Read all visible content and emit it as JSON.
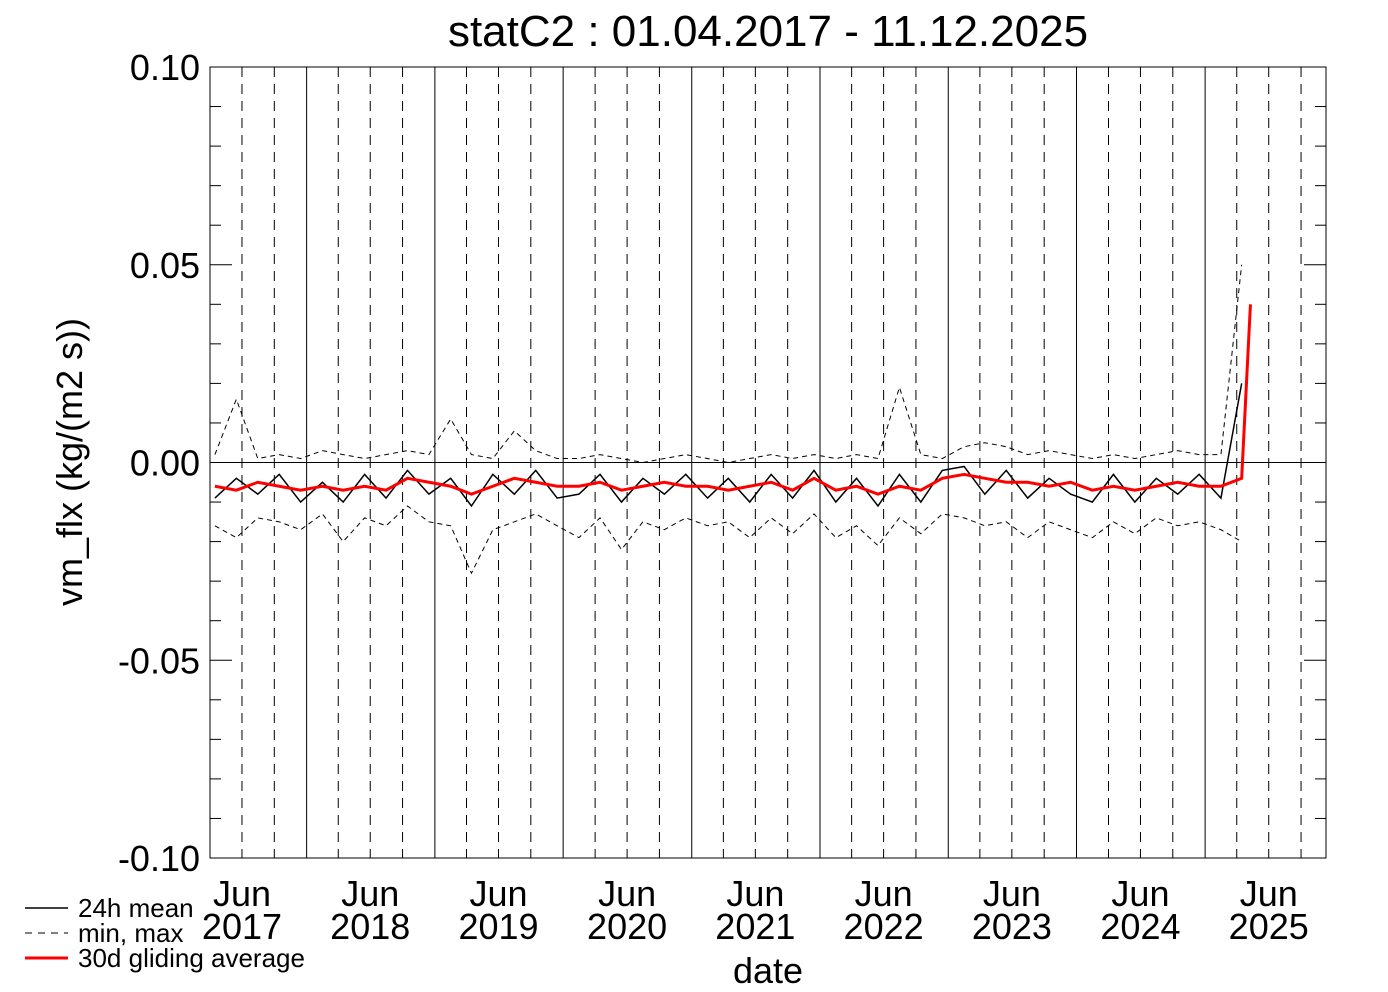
{
  "chart_data": {
    "type": "line",
    "title": "statC2 : 01.04.2017 - 11.12.2025",
    "x_label": "date",
    "y_label": "vm_flx (kg/(m2 s))",
    "xlim": [
      "2017-04-01",
      "2025-12-11"
    ],
    "ylim": [
      -0.1,
      0.1
    ],
    "yticks": [
      {
        "value": 0.1,
        "label": "0.10"
      },
      {
        "value": 0.05,
        "label": "0.05"
      },
      {
        "value": 0,
        "label": "0.00"
      },
      {
        "value": -0.05,
        "label": "-0.05"
      },
      {
        "value": -0.1,
        "label": "-0.10"
      }
    ],
    "yminorticks": [
      -0.09,
      -0.08,
      -0.07,
      -0.06,
      -0.04,
      -0.03,
      -0.02,
      -0.01,
      0.01,
      0.02,
      0.03,
      0.04,
      0.06,
      0.07,
      0.08,
      0.09
    ],
    "reference_line": 0,
    "xticks": [
      {
        "value": "2017-07-01",
        "label": "Jun 2017"
      },
      {
        "value": "2018-07-01",
        "label": "Jun 2018"
      },
      {
        "value": "2019-07-01",
        "label": "Jun 2019"
      },
      {
        "value": "2020-07-01",
        "label": "Jun 2020"
      },
      {
        "value": "2021-07-01",
        "label": "Jun 2021"
      },
      {
        "value": "2022-07-01",
        "label": "Jun 2022"
      },
      {
        "value": "2023-07-01",
        "label": "Jun 2023"
      },
      {
        "value": "2024-07-01",
        "label": "Jun 2024"
      },
      {
        "value": "2025-07-01",
        "label": "Jun 2025"
      }
    ],
    "year_lines": [
      "2018-01-01",
      "2019-01-01",
      "2020-01-01",
      "2021-01-01",
      "2022-01-01",
      "2023-01-01",
      "2024-01-01",
      "2025-01-01"
    ],
    "quarter_lines": [
      "2017-07-01",
      "2017-10-01",
      "2018-04-01",
      "2018-07-01",
      "2018-10-01",
      "2019-04-01",
      "2019-07-01",
      "2019-10-01",
      "2020-04-01",
      "2020-07-01",
      "2020-10-01",
      "2021-04-01",
      "2021-07-01",
      "2021-10-01",
      "2022-04-01",
      "2022-07-01",
      "2022-10-01",
      "2023-04-01",
      "2023-07-01",
      "2023-10-01",
      "2024-04-01",
      "2024-07-01",
      "2024-10-01",
      "2025-04-01",
      "2025-07-01",
      "2025-10-01"
    ],
    "x": [
      "2017-04-15",
      "2017-06-15",
      "2017-08-15",
      "2017-10-15",
      "2017-12-15",
      "2018-02-15",
      "2018-04-15",
      "2018-06-15",
      "2018-08-15",
      "2018-10-15",
      "2018-12-15",
      "2019-02-15",
      "2019-04-15",
      "2019-06-15",
      "2019-08-15",
      "2019-10-15",
      "2019-12-15",
      "2020-02-15",
      "2020-04-15",
      "2020-06-15",
      "2020-08-15",
      "2020-10-15",
      "2020-12-15",
      "2021-02-15",
      "2021-04-15",
      "2021-06-15",
      "2021-08-15",
      "2021-10-15",
      "2021-12-15",
      "2022-02-15",
      "2022-04-15",
      "2022-06-15",
      "2022-08-15",
      "2022-10-15",
      "2022-12-15",
      "2023-02-15",
      "2023-04-15",
      "2023-06-15",
      "2023-08-15",
      "2023-10-15",
      "2023-12-15",
      "2024-02-15",
      "2024-04-15",
      "2024-06-15",
      "2024-08-15",
      "2024-10-15",
      "2024-12-15",
      "2025-02-15",
      "2025-04-15",
      "2025-05-10"
    ],
    "series": [
      {
        "name": "24h mean",
        "color": "#000000",
        "dash": false,
        "width": 1.5,
        "values": [
          -0.009,
          -0.004,
          -0.008,
          -0.003,
          -0.01,
          -0.005,
          -0.01,
          -0.003,
          -0.009,
          -0.002,
          -0.008,
          -0.004,
          -0.011,
          -0.003,
          -0.008,
          -0.002,
          -0.009,
          -0.008,
          -0.003,
          -0.01,
          -0.004,
          -0.008,
          -0.003,
          -0.009,
          -0.004,
          -0.01,
          -0.003,
          -0.009,
          -0.002,
          -0.01,
          -0.004,
          -0.011,
          -0.003,
          -0.01,
          -0.002,
          -0.001,
          -0.008,
          -0.002,
          -0.009,
          -0.004,
          -0.008,
          -0.01,
          -0.003,
          -0.01,
          -0.004,
          -0.008,
          -0.003,
          -0.009,
          0.02,
          null
        ]
      },
      {
        "name": "min, max",
        "color": "#000000",
        "dash": true,
        "width": 1,
        "low": [
          -0.016,
          -0.019,
          -0.014,
          -0.015,
          -0.017,
          -0.013,
          -0.02,
          -0.014,
          -0.016,
          -0.011,
          -0.015,
          -0.016,
          -0.028,
          -0.017,
          -0.015,
          -0.013,
          -0.016,
          -0.019,
          -0.014,
          -0.022,
          -0.015,
          -0.017,
          -0.014,
          -0.016,
          -0.015,
          -0.019,
          -0.014,
          -0.018,
          -0.013,
          -0.019,
          -0.016,
          -0.021,
          -0.014,
          -0.018,
          -0.013,
          -0.014,
          -0.016,
          -0.015,
          -0.019,
          -0.015,
          -0.017,
          -0.019,
          -0.015,
          -0.018,
          -0.014,
          -0.016,
          -0.015,
          -0.017,
          -0.02,
          null
        ],
        "high": [
          0.002,
          0.016,
          0.001,
          0.002,
          0.001,
          0.003,
          0.002,
          0.001,
          0.002,
          0.003,
          0.002,
          0.011,
          0.002,
          0.001,
          0.008,
          0.003,
          0.001,
          0.001,
          0.002,
          0.001,
          0.0,
          0.001,
          0.002,
          0.001,
          0.0,
          0.001,
          0.002,
          0.001,
          0.002,
          0.001,
          0.002,
          0.001,
          0.019,
          0.002,
          0.001,
          0.004,
          0.005,
          0.004,
          0.002,
          0.003,
          0.002,
          0.001,
          0.002,
          0.001,
          0.002,
          0.003,
          0.002,
          0.002,
          0.05,
          null
        ]
      },
      {
        "name": "30d gliding average",
        "color": "#ff0000",
        "dash": false,
        "width": 3,
        "values": [
          -0.006,
          -0.007,
          -0.005,
          -0.006,
          -0.007,
          -0.006,
          -0.007,
          -0.006,
          -0.007,
          -0.004,
          -0.005,
          -0.006,
          -0.008,
          -0.006,
          -0.004,
          -0.005,
          -0.006,
          -0.006,
          -0.005,
          -0.007,
          -0.006,
          -0.005,
          -0.006,
          -0.006,
          -0.007,
          -0.006,
          -0.005,
          -0.007,
          -0.004,
          -0.007,
          -0.006,
          -0.008,
          -0.006,
          -0.007,
          -0.004,
          -0.003,
          -0.004,
          -0.005,
          -0.005,
          -0.006,
          -0.005,
          -0.007,
          -0.006,
          -0.007,
          -0.006,
          -0.005,
          -0.006,
          -0.006,
          -0.004,
          0.04
        ]
      }
    ]
  }
}
